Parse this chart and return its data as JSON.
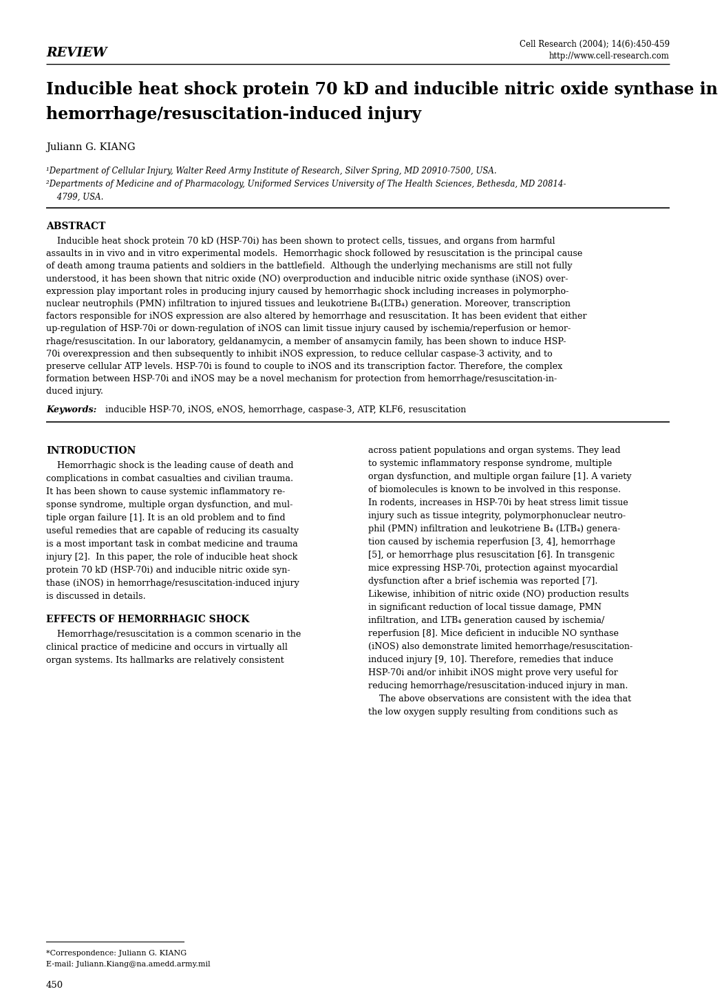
{
  "background_color": "#ffffff",
  "review_label": "REVIEW",
  "journal_info_line1": "Cell Research (2004); 14(6):450-459",
  "journal_info_line2": "http://www.cell-research.com",
  "title_line1": "Inducible heat shock protein 70 kD and inducible nitric oxide synthase in",
  "title_line2": "hemorrhage/resuscitation-induced injury",
  "author": "Juliann G. KIANG",
  "affil1": "¹Department of Cellular Injury, Walter Reed Army Institute of Research, Silver Spring, MD 20910-7500, USA.",
  "affil2": "²Departments of Medicine and of Pharmacology, Uniformed Services University of The Health Sciences, Bethesda, MD 20814-",
  "affil2b": " 4799, USA.",
  "abstract_title": "ABSTRACT",
  "keywords_label": "Keywords:",
  "keywords_text": "  inducible HSP-70, iNOS, eNOS, hemorrhage, caspase-3, ATP, KLF6, resuscitation",
  "intro_title": "INTRODUCTION",
  "effects_title": "EFFECTS OF HEMORRHAGIC SHOCK",
  "footnote_name": "*Correspondence: Juliann G. KIANG",
  "footnote_email": "E-mail: Juliann.Kiang@na.amedd.army.mil",
  "page_number": "450",
  "abstract_lines": [
    "    Inducible heat shock protein 70 kD (HSP-70i) has been shown to protect cells, tissues, and organs from harmful",
    "assaults in in vivo and in vitro experimental models.  Hemorrhagic shock followed by resuscitation is the principal cause",
    "of death among trauma patients and soldiers in the battlefield.  Although the underlying mechanisms are still not fully",
    "understood, it has been shown that nitric oxide (NO) overproduction and inducible nitric oxide synthase (iNOS) over-",
    "expression play important roles in producing injury caused by hemorrhagic shock including increases in polymorpho-",
    "nuclear neutrophils (PMN) infiltration to injured tissues and leukotriene B₄(LTB₄) generation. Moreover, transcription",
    "factors responsible for iNOS expression are also altered by hemorrhage and resuscitation. It has been evident that either",
    "up-regulation of HSP-70i or down-regulation of iNOS can limit tissue injury caused by ischemia/reperfusion or hemor-",
    "rhage/resuscitation. In our laboratory, geldanamycin, a member of ansamycin family, has been shown to induce HSP-",
    "70i overexpression and then subsequently to inhibit iNOS expression, to reduce cellular caspase-3 activity, and to",
    "preserve cellular ATP levels. HSP-70i is found to couple to iNOS and its transcription factor. Therefore, the complex",
    "formation between HSP-70i and iNOS may be a novel mechanism for protection from hemorrhage/resuscitation-in-",
    "duced injury."
  ],
  "intro_col1_lines": [
    "    Hemorrhagic shock is the leading cause of death and",
    "complications in combat casualties and civilian trauma.",
    "It has been shown to cause systemic inflammatory re-",
    "sponse syndrome, multiple organ dysfunction, and mul-",
    "tiple organ failure [1]. It is an old problem and to find",
    "useful remedies that are capable of reducing its casualty",
    "is a most important task in combat medicine and trauma",
    "injury [2].  In this paper, the role of inducible heat shock",
    "protein 70 kD (HSP-70i) and inducible nitric oxide syn-",
    "thase (iNOS) in hemorrhage/resuscitation-induced injury",
    "is discussed in details."
  ],
  "effects_col1_lines": [
    "    Hemorrhage/resuscitation is a common scenario in the",
    "clinical practice of medicine and occurs in virtually all",
    "organ systems. Its hallmarks are relatively consistent"
  ],
  "right_col_lines": [
    "across patient populations and organ systems. They lead",
    "to systemic inflammatory response syndrome, multiple",
    "organ dysfunction, and multiple organ failure [1]. A variety",
    "of biomolecules is known to be involved in this response.",
    "In rodents, increases in HSP-70i by heat stress limit tissue",
    "injury such as tissue integrity, polymorphonuclear neutro-",
    "phil (PMN) infiltration and leukotriene B₄ (LTB₄) genera-",
    "tion caused by ischemia reperfusion [3, 4], hemorrhage",
    "[5], or hemorrhage plus resuscitation [6]. In transgenic",
    "mice expressing HSP-70i, protection against myocardial",
    "dysfunction after a brief ischemia was reported [7].",
    "Likewise, inhibition of nitric oxide (NO) production results",
    "in significant reduction of local tissue damage, PMN",
    "infiltration, and LTB₄ generation caused by ischemia/",
    "reperfusion [8]. Mice deficient in inducible NO synthase",
    "(iNOS) also demonstrate limited hemorrhage/resuscitation-",
    "induced injury [9, 10]. Therefore, remedies that induce",
    "HSP-70i and/or inhibit iNOS might prove very useful for",
    "reducing hemorrhage/resuscitation-induced injury in man.",
    "    The above observations are consistent with the idea that",
    "the low oxygen supply resulting from conditions such as"
  ]
}
